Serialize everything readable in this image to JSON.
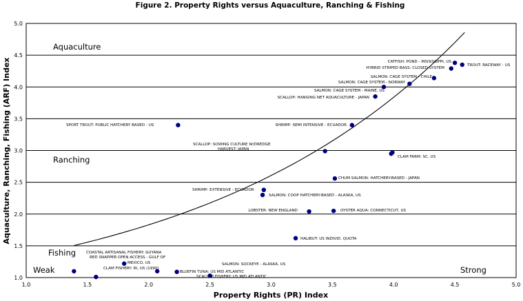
{
  "chart_data": {
    "type": "scatter",
    "title": "Figure 2.  Property Rights  versus Aquaculture, Ranching & Fishing",
    "xlabel": "Property Rights (PR) Index",
    "ylabel": "Aquaculture, Ranching, Fishing (ARF) Index",
    "xlim": [
      1.0,
      5.0
    ],
    "ylim": [
      1.0,
      5.0
    ],
    "x_ticks": [
      "1.0",
      "1.5",
      "2.0",
      "2.5",
      "3.0",
      "3.5",
      "4.0",
      "4.5",
      "5.0"
    ],
    "y_ticks": [
      "1.0",
      "1.5",
      "2.0",
      "2.5",
      "3.0",
      "3.5",
      "4.0",
      "4.5",
      "5.0"
    ],
    "grid": "horizontal",
    "legend": "none",
    "marker_color": "#000080",
    "region_labels": {
      "aquaculture": "Aquaculture",
      "ranching": "Ranching",
      "fishing": "Fishing",
      "weak": "Weak",
      "strong": "Strong"
    },
    "points": [
      {
        "x": 1.39,
        "y": 1.1
      },
      {
        "x": 1.57,
        "y": 1.01
      },
      {
        "x": 1.8,
        "y": 1.22
      },
      {
        "x": 2.07,
        "y": 1.1
      },
      {
        "x": 2.23,
        "y": 1.09
      },
      {
        "x": 2.5,
        "y": 1.03
      },
      {
        "x": 2.24,
        "y": 3.4
      },
      {
        "x": 2.94,
        "y": 2.38
      },
      {
        "x": 2.93,
        "y": 2.3
      },
      {
        "x": 3.2,
        "y": 1.62
      },
      {
        "x": 3.31,
        "y": 2.04
      },
      {
        "x": 3.44,
        "y": 2.99
      },
      {
        "x": 3.52,
        "y": 2.56
      },
      {
        "x": 3.51,
        "y": 2.05
      },
      {
        "x": 3.66,
        "y": 3.4
      },
      {
        "x": 3.85,
        "y": 3.85
      },
      {
        "x": 3.92,
        "y": 4.0
      },
      {
        "x": 3.99,
        "y": 2.97
      },
      {
        "x": 3.98,
        "y": 2.95
      },
      {
        "x": 4.13,
        "y": 4.05
      },
      {
        "x": 4.33,
        "y": 4.14
      },
      {
        "x": 4.47,
        "y": 4.29
      },
      {
        "x": 4.5,
        "y": 4.38
      },
      {
        "x": 4.56,
        "y": 4.35
      }
    ],
    "annotations": [
      "CATFISH: POND - MISSISSIPPI, US",
      "TROUT: RACEWAY - US",
      "HYBRID STRIPED BASS: CLOSED SYSTEM",
      "SALMON: CAGE SYSTEM - CHILE",
      "SALMON: CAGE SYSTEM - NORWAY",
      "SALMON: CAGE SYSTEM - MAINE, US",
      "SCALLOP: HANGING NET AQUACULTURE - JAPAN",
      "SPORT TROUT: PUBLIC HATCHERY BASED - US",
      "SHRIMP: SEMI INTENSIVE - ECUADOR",
      "SCALLOP: SOWING CULTURE W/DREDGE",
      "HARVEST: JAPAN",
      "CLAM FARM: SC, US",
      "CHUM SALMON: HATCHERY-BASED - JAPAN",
      "SHRIMP: EXTENSIVE - ECUADOR",
      "SALMON: COOP HATCHERY-BASED - ALASKA, US",
      "LOBSTER: NEW ENGLAND",
      "OYSTER AQUA: CONNECTICUT, US",
      "HALIBUT: US INDIVID. QUOTA",
      "COASTAL ARTISANAL FISHERY: GUYANA",
      "RED SNAPPER OPEN ACCESS - GULF OF",
      "MEXICO, US",
      "CLAM FISHERY: RI, US (1990)",
      "SALMON: SOCKEYE - ALASKA, US",
      "BLUEFIN TUNA: US MID ATLANTIC",
      "SCALLOP FISHERY: US MID ATLANTIC"
    ],
    "trend_curve": {
      "form": "exponential",
      "x_range": [
        1.39,
        4.58
      ],
      "a": 0.53,
      "b": 0.46,
      "c": 0.5
    }
  }
}
